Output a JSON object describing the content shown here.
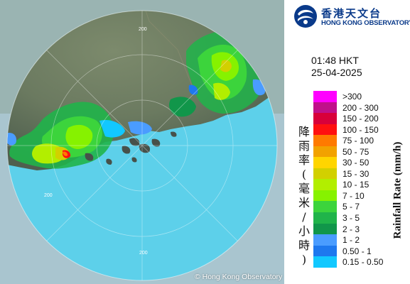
{
  "brand": {
    "name_zh": "香港天文台",
    "name_en": "HONG KONG OBSERVATORY",
    "emblem_icon": "hko-emblem-icon",
    "color": "#0a3a8a"
  },
  "timestamp": {
    "time": "01:48 HKT",
    "date": "25-04-2025"
  },
  "map": {
    "range_ring_label": "200",
    "copyright": "© Hong Kong Observatory",
    "sea_color": "#5dd0ea",
    "outside_color": "#a9c5cf"
  },
  "legend": {
    "title_en": "Rainfall Rate (mm/h)",
    "title_zh": "降雨率(毫米/小時)",
    "items": [
      {
        "label": ">300",
        "color": "#ff00ff"
      },
      {
        "label": "200 - 300",
        "color": "#c0108a"
      },
      {
        "label": "150 - 200",
        "color": "#d8003a"
      },
      {
        "label": "100 - 150",
        "color": "#ff1010"
      },
      {
        "label": "75 - 100",
        "color": "#ff7a00"
      },
      {
        "label": "50 - 75",
        "color": "#f2a200"
      },
      {
        "label": "30 - 50",
        "color": "#ffd500"
      },
      {
        "label": "15 - 30",
        "color": "#d2d000"
      },
      {
        "label": "10 - 15",
        "color": "#b2ee00"
      },
      {
        "label": "7 - 10",
        "color": "#86f200"
      },
      {
        "label": "5 - 7",
        "color": "#3cd43c"
      },
      {
        "label": "3 - 5",
        "color": "#20b44a"
      },
      {
        "label": "2 - 3",
        "color": "#11964a"
      },
      {
        "label": "1 - 2",
        "color": "#4a9cff"
      },
      {
        "label": "0.50 - 1",
        "color": "#1e78ee"
      },
      {
        "label": "0.15 - 0.50",
        "color": "#12c8ff"
      }
    ]
  }
}
